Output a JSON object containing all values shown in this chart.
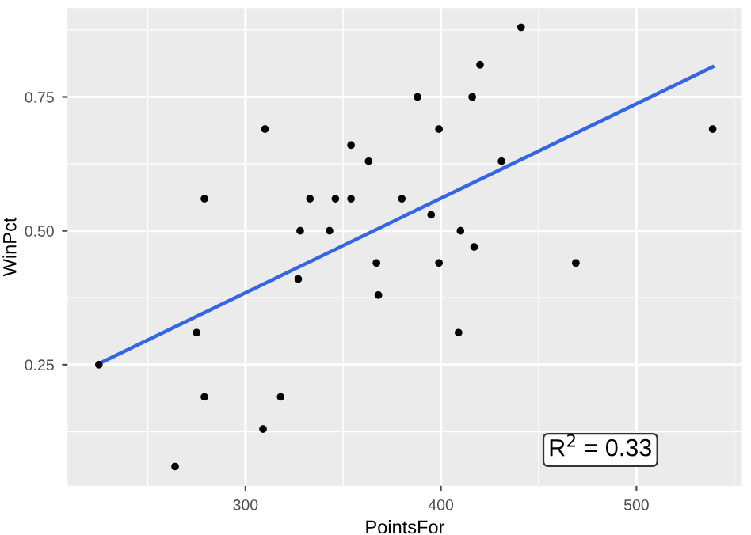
{
  "chart_data": {
    "type": "scatter",
    "xlabel": "PointsFor",
    "ylabel": "WinPct",
    "xlim": [
      209,
      554
    ],
    "ylim": [
      0.024,
      0.916
    ],
    "xticks": [
      300,
      400,
      500
    ],
    "yticks": [
      {
        "value": 0.25,
        "label": "0.25"
      },
      {
        "value": 0.5,
        "label": "0.50"
      },
      {
        "value": 0.75,
        "label": "0.75"
      }
    ],
    "grid": true,
    "series": [
      {
        "color": "#000000",
        "marker": "circle",
        "x": [
          225,
          275,
          279,
          264,
          309,
          318,
          327,
          279,
          310,
          328,
          333,
          343,
          346,
          354,
          354,
          363,
          367,
          368,
          441,
          420,
          388,
          416,
          399,
          539,
          431,
          380,
          395,
          410,
          417,
          399,
          469,
          409
        ],
        "values": [
          0.25,
          0.31,
          0.19,
          0.06,
          0.13,
          0.19,
          0.41,
          0.56,
          0.69,
          0.5,
          0.56,
          0.5,
          0.56,
          0.56,
          0.66,
          0.63,
          0.44,
          0.38,
          0.88,
          0.81,
          0.75,
          0.75,
          0.69,
          0.69,
          0.63,
          0.56,
          0.53,
          0.5,
          0.47,
          0.44,
          0.44,
          0.31
        ]
      },
      {
        "type": "line",
        "color": "#3366e6",
        "x": [
          225,
          539
        ],
        "values": [
          0.252,
          0.806
        ]
      }
    ],
    "annotations": [
      "R$^{2}$ = 0.33"
    ]
  }
}
